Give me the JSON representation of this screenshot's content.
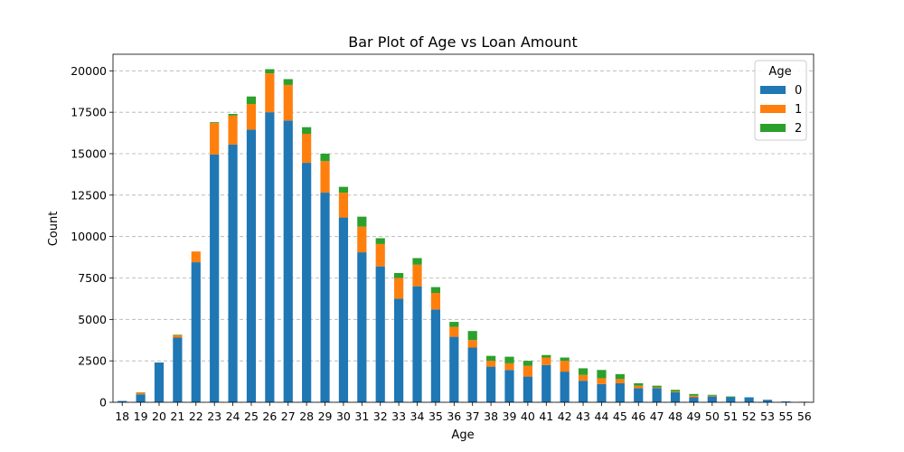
{
  "chart_data": {
    "type": "bar",
    "stacked": true,
    "title": "Bar Plot of Age vs Loan Amount",
    "xlabel": "Age",
    "ylabel": "Count",
    "ylim": [
      0,
      21000
    ],
    "yticks": [
      0,
      2500,
      5000,
      7500,
      10000,
      12500,
      15000,
      17500,
      20000
    ],
    "grid": "y-dashed",
    "legend_title": "Age",
    "legend_position": "top-right",
    "categories": [
      "18",
      "19",
      "20",
      "21",
      "22",
      "23",
      "24",
      "25",
      "26",
      "27",
      "28",
      "29",
      "30",
      "31",
      "32",
      "33",
      "34",
      "35",
      "36",
      "37",
      "38",
      "39",
      "40",
      "41",
      "42",
      "43",
      "44",
      "45",
      "46",
      "47",
      "48",
      "49",
      "50",
      "51",
      "52",
      "53",
      "55",
      "56"
    ],
    "series": [
      {
        "name": "0",
        "color": "#1f77b4",
        "values": [
          80,
          480,
          2400,
          3900,
          8450,
          14950,
          15550,
          16450,
          17500,
          17000,
          14450,
          12650,
          11150,
          9050,
          8200,
          6250,
          7000,
          5600,
          3950,
          3300,
          2150,
          1950,
          1550,
          2250,
          1850,
          1300,
          1100,
          1150,
          850,
          850,
          600,
          300,
          350,
          300,
          300,
          150,
          50,
          30
        ]
      },
      {
        "name": "1",
        "color": "#ff7f0e",
        "values": [
          0,
          100,
          0,
          150,
          650,
          1900,
          1750,
          1550,
          2350,
          2150,
          1750,
          1900,
          1500,
          1550,
          1350,
          1250,
          1300,
          1000,
          600,
          450,
          350,
          400,
          650,
          450,
          650,
          350,
          350,
          250,
          150,
          50,
          50,
          100,
          50,
          0,
          0,
          0,
          0,
          0
        ]
      },
      {
        "name": "2",
        "color": "#2ca02c",
        "values": [
          0,
          20,
          0,
          30,
          0,
          50,
          100,
          450,
          250,
          350,
          400,
          450,
          350,
          600,
          350,
          300,
          400,
          350,
          300,
          550,
          300,
          400,
          300,
          150,
          200,
          400,
          500,
          300,
          150,
          100,
          100,
          100,
          50,
          50,
          0,
          0,
          0,
          0
        ]
      }
    ]
  }
}
